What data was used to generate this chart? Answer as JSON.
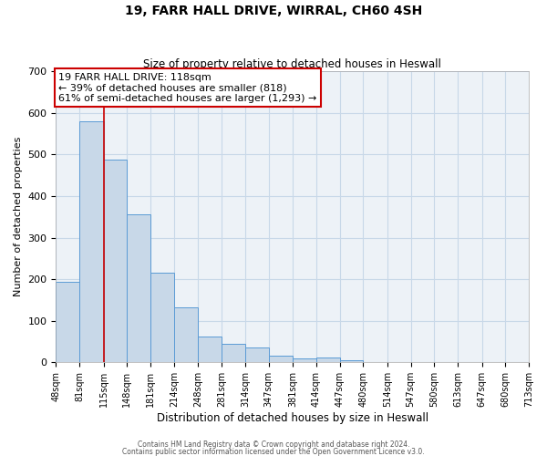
{
  "title1": "19, FARR HALL DRIVE, WIRRAL, CH60 4SH",
  "title2": "Size of property relative to detached houses in Heswall",
  "xlabel": "Distribution of detached houses by size in Heswall",
  "ylabel": "Number of detached properties",
  "bar_left_edges": [
    48,
    81,
    115,
    148,
    181,
    214,
    248,
    281,
    314,
    347,
    381,
    414,
    447,
    480,
    514,
    547,
    580,
    613,
    647,
    680
  ],
  "bar_widths": [
    33,
    34,
    33,
    33,
    33,
    34,
    33,
    33,
    33,
    34,
    33,
    33,
    33,
    34,
    33,
    33,
    33,
    34,
    33,
    33
  ],
  "bar_heights": [
    194,
    580,
    487,
    356,
    216,
    132,
    63,
    44,
    35,
    16,
    10,
    11,
    5,
    0,
    0,
    0,
    0,
    0,
    0,
    0
  ],
  "bar_color": "#c8d8e8",
  "bar_edgecolor": "#5b9bd5",
  "xlim_left": 48,
  "xlim_right": 713,
  "ylim_top": 700,
  "ylim_bottom": 0,
  "yticks": [
    0,
    100,
    200,
    300,
    400,
    500,
    600,
    700
  ],
  "xtick_labels": [
    "48sqm",
    "81sqm",
    "115sqm",
    "148sqm",
    "181sqm",
    "214sqm",
    "248sqm",
    "281sqm",
    "314sqm",
    "347sqm",
    "381sqm",
    "414sqm",
    "447sqm",
    "480sqm",
    "514sqm",
    "547sqm",
    "580sqm",
    "613sqm",
    "647sqm",
    "680sqm",
    "713sqm"
  ],
  "xtick_positions": [
    48,
    81,
    115,
    148,
    181,
    214,
    248,
    281,
    314,
    347,
    381,
    414,
    447,
    480,
    514,
    547,
    580,
    613,
    647,
    680,
    713
  ],
  "property_line_x": 115,
  "annotation_line1": "19 FARR HALL DRIVE: 118sqm",
  "annotation_line2": "← 39% of detached houses are smaller (818)",
  "annotation_line3": "61% of semi-detached houses are larger (1,293) →",
  "footer1": "Contains HM Land Registry data © Crown copyright and database right 2024.",
  "footer2": "Contains public sector information licensed under the Open Government Licence v3.0.",
  "grid_color": "#c8d8e8",
  "box_edge_color": "#cc0000",
  "property_line_color": "#cc0000",
  "background_color": "#edf2f7",
  "title1_fontsize": 10,
  "title2_fontsize": 8.5,
  "ylabel_fontsize": 8,
  "xlabel_fontsize": 8.5,
  "annotation_fontsize": 8,
  "ytick_fontsize": 8,
  "xtick_fontsize": 7
}
